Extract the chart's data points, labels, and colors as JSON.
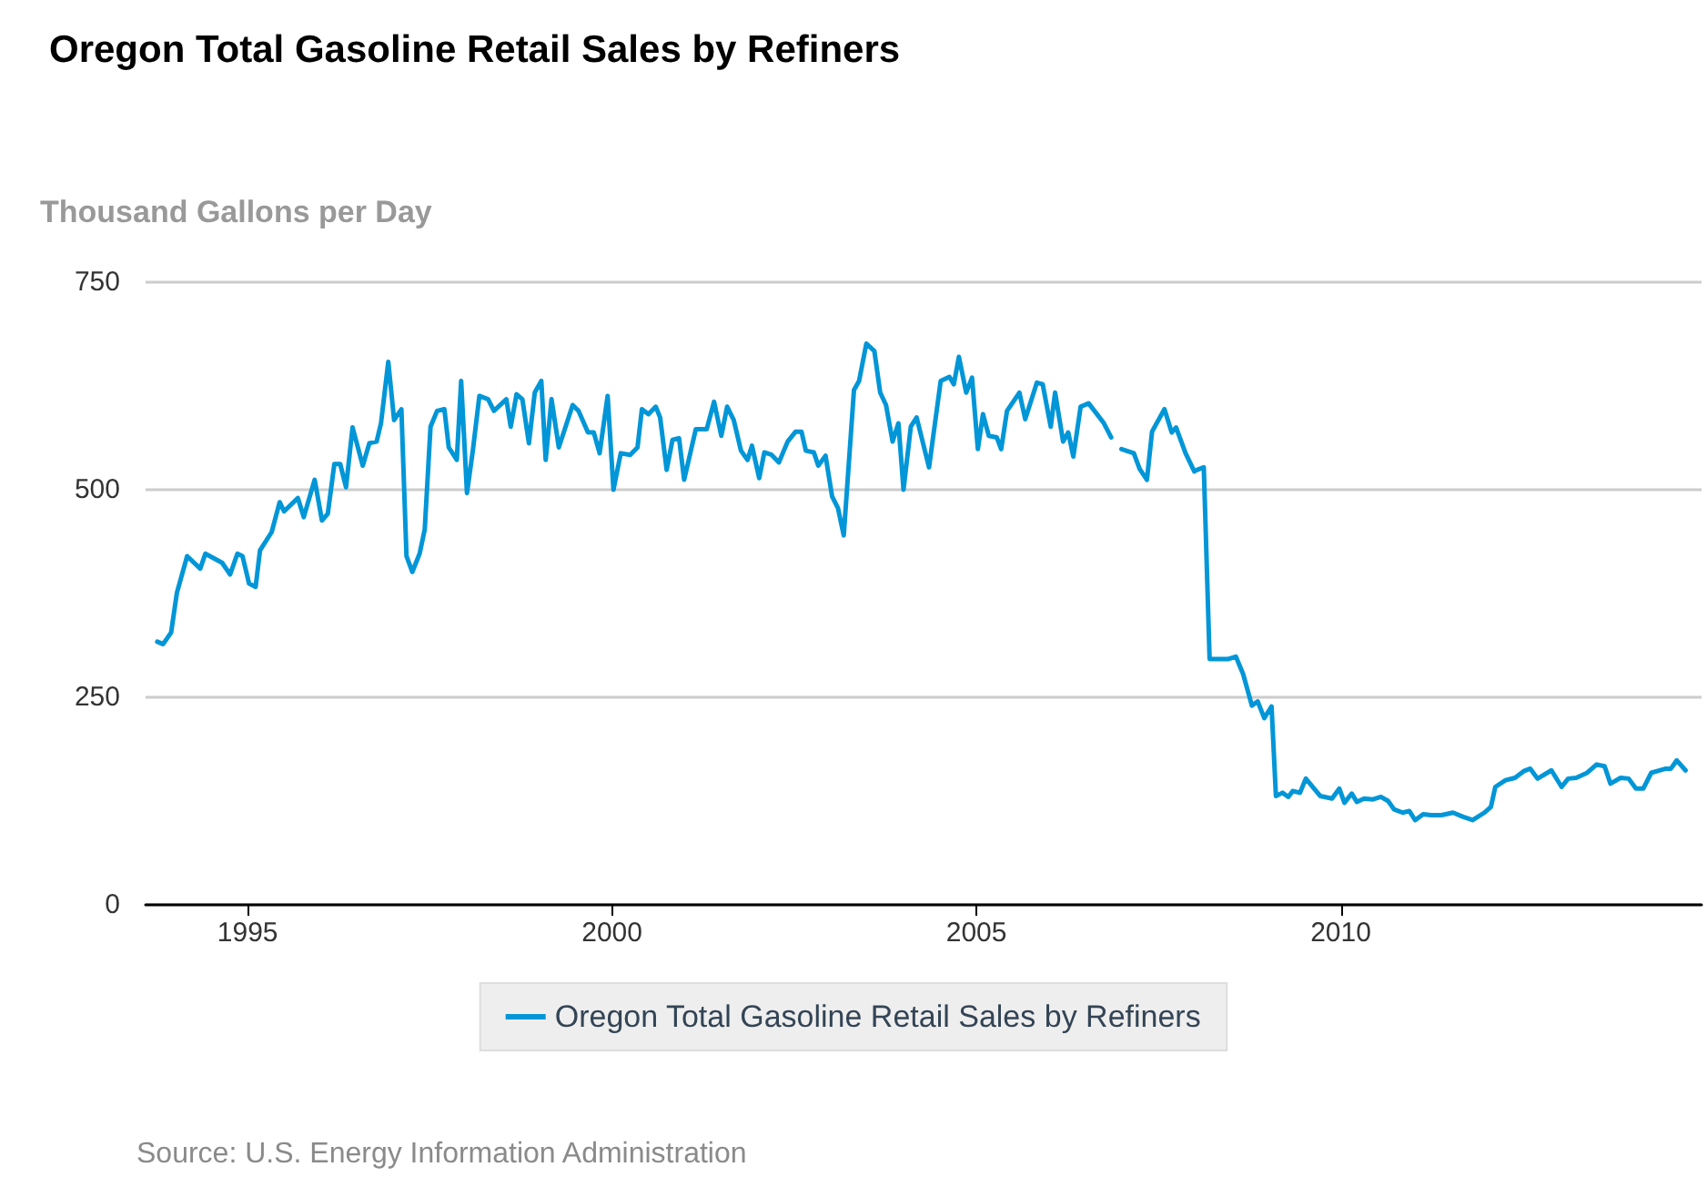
{
  "chart_data": {
    "type": "line",
    "title": "Oregon Total Gasoline Retail Sales by Refiners",
    "ylabel": "Thousand Gallons per Day",
    "x": [
      1993.76,
      1993.84,
      1993.95,
      1994.03,
      1994.17,
      1994.35,
      1994.42,
      1994.65,
      1994.76,
      1994.86,
      1994.93,
      1995.02,
      1995.11,
      1995.17,
      1995.33,
      1995.44,
      1995.5,
      1995.69,
      1995.77,
      1995.92,
      1996.02,
      1996.1,
      1996.19,
      1996.27,
      1996.35,
      1996.44,
      1996.58,
      1996.67,
      1996.77,
      1996.83,
      1996.93,
      1997.01,
      1997.11,
      1997.18,
      1997.26,
      1997.36,
      1997.43,
      1997.51,
      1997.6,
      1997.7,
      1997.76,
      1997.87,
      1997.93,
      1998.01,
      1998.09,
      1998.18,
      1998.3,
      1998.38,
      1998.55,
      1998.61,
      1998.69,
      1998.77,
      1998.86,
      1998.94,
      1999.03,
      1999.09,
      1999.17,
      1999.27,
      1999.46,
      1999.54,
      1999.67,
      1999.75,
      1999.83,
      1999.94,
      2000.02,
      2000.12,
      2000.25,
      2000.35,
      2000.41,
      2000.5,
      2000.6,
      2000.66,
      2000.75,
      2000.83,
      2000.92,
      2000.99,
      2001.15,
      2001.3,
      2001.4,
      2001.5,
      2001.58,
      2001.67,
      2001.77,
      2001.86,
      2001.92,
      2002.02,
      2002.09,
      2002.19,
      2002.29,
      2002.41,
      2002.52,
      2002.6,
      2002.66,
      2002.77,
      2002.83,
      2002.93,
      2003.02,
      2003.1,
      2003.18,
      2003.32,
      2003.39,
      2003.49,
      2003.6,
      2003.68,
      2003.76,
      2003.85,
      2003.93,
      2004.0,
      2004.1,
      2004.18,
      2004.35,
      2004.51,
      2004.63,
      2004.69,
      2004.76,
      2004.86,
      2004.94,
      2005.02,
      2005.09,
      2005.17,
      2005.28,
      2005.34,
      2005.42,
      2005.59,
      2005.67,
      2005.83,
      2005.91,
      2006.02,
      2006.08,
      2006.19,
      2006.26,
      2006.33,
      2006.43,
      2006.54,
      2006.62,
      2006.75,
      2006.85,
      2006.92,
      2006.99,
      2007.16,
      2007.24,
      2007.34,
      2007.41,
      2007.58,
      2007.68,
      2007.74,
      2007.87,
      2007.99,
      2008.03,
      2008.12,
      2008.2,
      2008.45,
      2008.56,
      2008.66,
      2008.78,
      2008.86,
      2008.95,
      2009.05,
      2009.11,
      2009.2,
      2009.28,
      2009.34,
      2009.44,
      2009.52,
      2009.72,
      2009.88,
      2009.98,
      2010.05,
      2010.15,
      2010.22,
      2010.32,
      2010.44,
      2010.55,
      2010.65,
      2010.73,
      2010.85,
      2010.94,
      2011.02,
      2011.13,
      2011.24,
      2011.38,
      2011.54,
      2011.68,
      2011.81,
      2011.97,
      2012.06,
      2012.12,
      2012.26,
      2012.39,
      2012.51,
      2012.6,
      2012.7,
      2012.89,
      2013.03,
      2013.12,
      2013.23,
      2013.38,
      2013.51,
      2013.62,
      2013.7,
      2013.84,
      2013.95,
      2014.05,
      2014.15,
      2014.26,
      2014.34,
      2014.46,
      2014.53,
      2014.61,
      2014.73
    ],
    "series": [
      {
        "name": "Oregon Total Gasoline Retail Sales by Refiners",
        "color": "#0096d7",
        "values": [
          317,
          314,
          328,
          376,
          420,
          405,
          423,
          412,
          398,
          423,
          420,
          387,
          383,
          427,
          449,
          485,
          474,
          490,
          467,
          512,
          463,
          471,
          531,
          531,
          503,
          575,
          529,
          556,
          558,
          580,
          654,
          584,
          597,
          420,
          401,
          423,
          452,
          576,
          595,
          597,
          551,
          536,
          631,
          496,
          547,
          613,
          609,
          595,
          609,
          576,
          615,
          609,
          556,
          617,
          631,
          536,
          609,
          551,
          602,
          595,
          569,
          569,
          544,
          613,
          500,
          544,
          542,
          551,
          597,
          591,
          600,
          587,
          524,
          560,
          562,
          512,
          573,
          573,
          606,
          565,
          600,
          584,
          547,
          536,
          553,
          514,
          545,
          542,
          533,
          558,
          570,
          570,
          547,
          545,
          529,
          541,
          492,
          478,
          445,
          620,
          631,
          676,
          667,
          617,
          602,
          558,
          580,
          500,
          576,
          587,
          527,
          631,
          636,
          627,
          660,
          617,
          635,
          549,
          591,
          565,
          563,
          549,
          595,
          617,
          585,
          629,
          627,
          576,
          617,
          558,
          569,
          540,
          600,
          604,
          595,
          580,
          563,
          null,
          549,
          544,
          525,
          512,
          570,
          597,
          569,
          575,
          544,
          522,
          524,
          527,
          296,
          296,
          299,
          278,
          240,
          245,
          225,
          239,
          131,
          135,
          130,
          137,
          135,
          152,
          131,
          128,
          140,
          123,
          134,
          124,
          128,
          127,
          130,
          125,
          115,
          111,
          113,
          102,
          109,
          108,
          108,
          111,
          106,
          102,
          111,
          118,
          142,
          150,
          153,
          161,
          164,
          152,
          162,
          142,
          152,
          153,
          159,
          169,
          167,
          146,
          153,
          152,
          140,
          140,
          159,
          161,
          164,
          164,
          174,
          162
        ]
      }
    ],
    "xlim": [
      1993.6,
      2014.95
    ],
    "xticks": [
      1995,
      2000,
      2005,
      2010
    ],
    "ylim": [
      0,
      750
    ],
    "yticks": [
      0,
      250,
      500,
      750
    ],
    "grid": "y",
    "legend": "bottom",
    "marker": "none",
    "line_style": "solid",
    "annotations": [
      "Source: U.S. Energy Information Administration"
    ]
  }
}
